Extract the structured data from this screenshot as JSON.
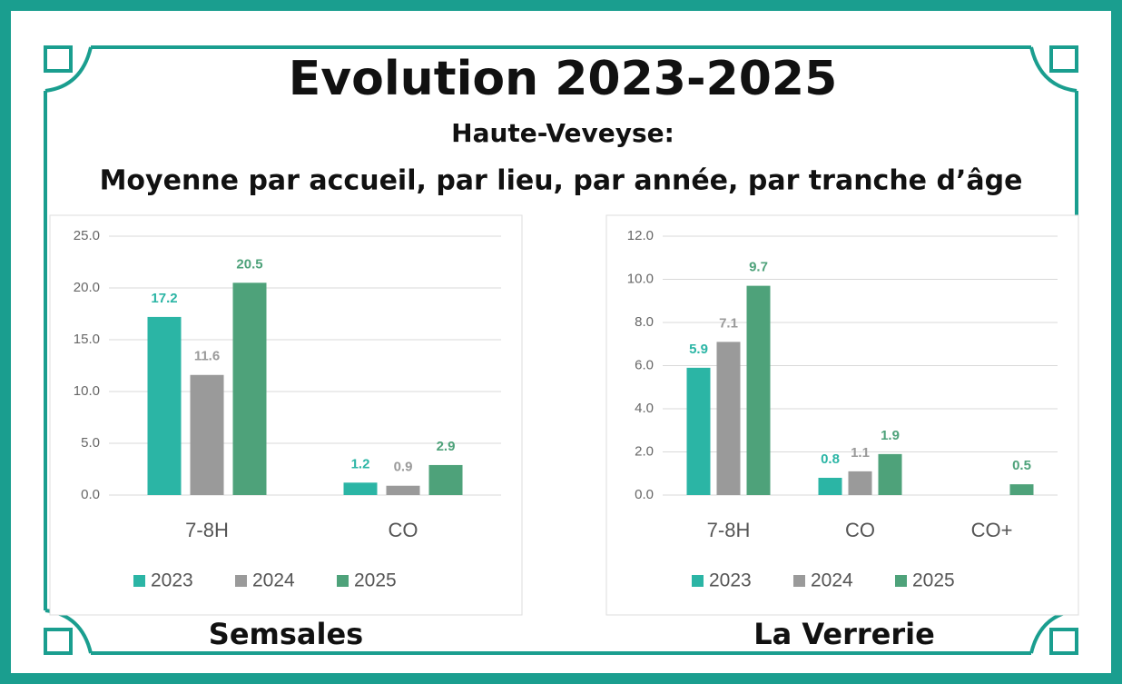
{
  "header": {
    "title": "Evolution 2023-2025",
    "subtitle": "Haute-Veveyse:",
    "description": "Moyenne par accueil, par lieu, par année, par tranche d’âge"
  },
  "chart_data": [
    {
      "type": "bar",
      "title": "Semsales",
      "categories": [
        "7-8H",
        "CO"
      ],
      "series": [
        {
          "name": "2023",
          "color": "#2bb5a5",
          "values": [
            17.2,
            1.2
          ]
        },
        {
          "name": "2024",
          "color": "#9a9a9a",
          "values": [
            11.6,
            0.9
          ]
        },
        {
          "name": "2025",
          "color": "#4ea27a",
          "values": [
            20.5,
            2.9
          ]
        }
      ],
      "ylim": [
        0,
        25
      ],
      "yticks": [
        {
          "value": 0,
          "label": "0.0"
        },
        {
          "value": 5,
          "label": "5.0"
        },
        {
          "value": 10,
          "label": "10.0"
        },
        {
          "value": 15,
          "label": "15.0"
        },
        {
          "value": 20,
          "label": "20.0"
        },
        {
          "value": 25,
          "label": "25.0"
        }
      ],
      "grid": true,
      "legend": "bottom"
    },
    {
      "type": "bar",
      "title": "La Verrerie",
      "categories": [
        "7-8H",
        "CO",
        "CO+"
      ],
      "series": [
        {
          "name": "2023",
          "color": "#2bb5a5",
          "values": [
            5.9,
            0.8,
            null
          ]
        },
        {
          "name": "2024",
          "color": "#9a9a9a",
          "values": [
            7.1,
            1.1,
            null
          ]
        },
        {
          "name": "2025",
          "color": "#4ea27a",
          "values": [
            9.7,
            1.9,
            0.5
          ]
        }
      ],
      "ylim": [
        0,
        12
      ],
      "yticks": [
        {
          "value": 0,
          "label": "0.0"
        },
        {
          "value": 2,
          "label": "2.0"
        },
        {
          "value": 4,
          "label": "4.0"
        },
        {
          "value": 6,
          "label": "6.0"
        },
        {
          "value": 8,
          "label": "8.0"
        },
        {
          "value": 10,
          "label": "10.0"
        },
        {
          "value": 12,
          "label": "12.0"
        }
      ],
      "grid": true,
      "legend": "bottom"
    }
  ]
}
